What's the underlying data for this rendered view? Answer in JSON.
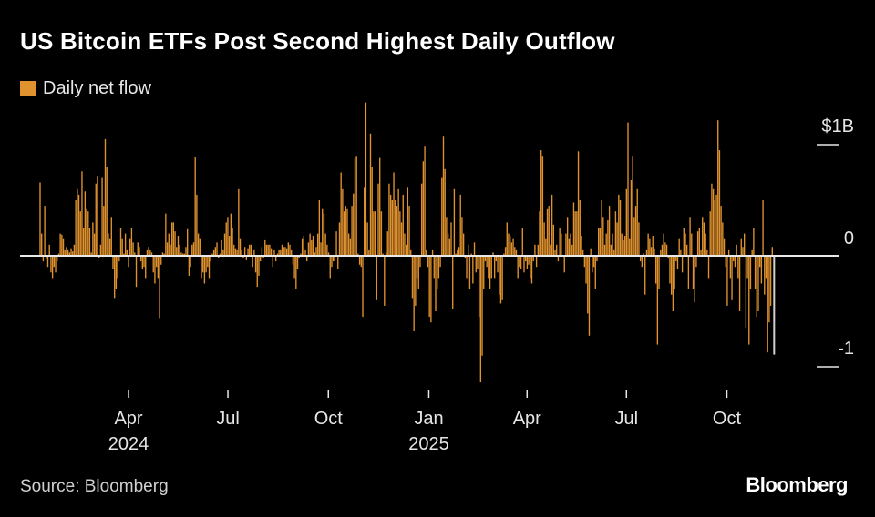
{
  "chart_data": {
    "type": "bar",
    "title": "US Bitcoin ETFs Post Second Highest Daily Outflow",
    "legend": [
      {
        "name": "Daily net flow",
        "color": "#e0922e"
      }
    ],
    "unit": "$B",
    "xlim": [
      "2024-01-11",
      "2025-11-13"
    ],
    "ylim": [
      -1.2,
      1.4
    ],
    "y_ticks": [
      {
        "value": 1,
        "label": "$1B"
      },
      {
        "value": 0,
        "label": "0"
      },
      {
        "value": -1,
        "label": "-1"
      }
    ],
    "x_ticks": [
      {
        "date": "2024-04-01",
        "label": "Apr",
        "year": "2024"
      },
      {
        "date": "2024-07-01",
        "label": "Jul",
        "year": ""
      },
      {
        "date": "2024-10-01",
        "label": "Oct",
        "year": ""
      },
      {
        "date": "2025-01-01",
        "label": "Jan",
        "year": "2025"
      },
      {
        "date": "2025-04-01",
        "label": "Apr",
        "year": ""
      },
      {
        "date": "2025-07-01",
        "label": "Jul",
        "year": ""
      },
      {
        "date": "2025-10-01",
        "label": "Oct",
        "year": ""
      }
    ],
    "bar_color": "#e0922e",
    "highlight_color": "#cfcfcf",
    "highlight_last": true,
    "grid": false,
    "legend_placement": "top-left",
    "values": [
      0.66,
      0.2,
      -0.05,
      0.45,
      -0.03,
      -0.1,
      0.1,
      -0.15,
      -0.2,
      -0.1,
      -0.15,
      -0.05,
      0.02,
      0.2,
      0.19,
      0.15,
      0.05,
      0.08,
      0.05,
      0.03,
      0.06,
      0.04,
      0.1,
      0.5,
      0.6,
      0.55,
      0.4,
      0.76,
      0.25,
      0.58,
      0.42,
      0.4,
      0.25,
      0.03,
      0.3,
      0.2,
      0.65,
      0.72,
      -0.02,
      0.1,
      0.7,
      0.45,
      1.05,
      0.8,
      0.2,
      0.15,
      0.35,
      -0.12,
      -0.38,
      -0.3,
      -0.2,
      -0.05,
      0.25,
      0.15,
      0.02,
      0.2,
      0.05,
      -0.1,
      0.15,
      0.25,
      0.12,
      0.03,
      -0.28,
      0.12,
      0.08,
      -0.05,
      -0.12,
      -0.1,
      -0.2,
      0.05,
      0.08,
      0.05,
      0.03,
      -0.15,
      -0.25,
      -0.1,
      -0.2,
      -0.56,
      -0.08,
      0.03,
      0.02,
      0.38,
      0.12,
      0.2,
      0.1,
      0.3,
      0.3,
      0.22,
      0.08,
      0.18,
      0.1,
      0.03,
      0.02,
      0.02,
      0.08,
      0.24,
      -0.18,
      -0.1,
      0.1,
      0.12,
      0.89,
      0.55,
      0.2,
      0.15,
      -0.2,
      -0.15,
      -0.25,
      -0.15,
      -0.1,
      -0.2,
      -0.05,
      0.02,
      0.05,
      0.08,
      0.12,
      -0.02,
      0.02,
      0.14,
      0.05,
      0.2,
      0.3,
      0.35,
      0.18,
      0.38,
      0.25,
      0.1,
      0.06,
      0.05,
      0.6,
      0.15,
      0.05,
      -0.02,
      0.08,
      -0.04,
      0.06,
      0.1,
      0.1,
      -0.1,
      0.05,
      -0.15,
      -0.28,
      -0.18,
      -0.05,
      0.08,
      -0.02,
      0.14,
      0.1,
      0.1,
      0.1,
      0.06,
      -0.1,
      0.05,
      -0.05,
      0.02,
      0.05,
      0.05,
      0.1,
      0.08,
      0.08,
      0.06,
      0.12,
      0.1,
      0.05,
      -0.08,
      -0.2,
      -0.3,
      -0.12,
      -0.02,
      0.02,
      0.15,
      0.18,
      0.05,
      -0.05,
      0.12,
      0.2,
      0.14,
      0.18,
      0.03,
      0.08,
      0.2,
      0.5,
      0.12,
      0.42,
      0.38,
      0.2,
      0.1,
      0.03,
      -0.2,
      -0.1,
      -0.05,
      -0.05,
      0.22,
      -0.12,
      0.3,
      0.75,
      0.6,
      0.4,
      0.45,
      0.42,
      0.2,
      0.15,
      0.45,
      0.56,
      0.88,
      0.9,
      0.02,
      -0.08,
      -0.1,
      -0.55,
      0.62,
      1.38,
      0.3,
      0.05,
      1.1,
      0.8,
      0.4,
      0.4,
      -0.4,
      0.65,
      0.88,
      0.4,
      0.02,
      -0.45,
      0.03,
      0.22,
      0.65,
      0.55,
      0.5,
      0.75,
      0.5,
      0.45,
      0.6,
      0.4,
      0.3,
      0.55,
      0.2,
      0.1,
      0.62,
      0.45,
      0.05,
      -0.38,
      -0.68,
      -0.45,
      -0.2,
      -0.3,
      -0.1,
      0.65,
      0.85,
      0.99,
      0.05,
      -0.1,
      -0.55,
      -0.6,
      0.05,
      -0.2,
      -0.5,
      -0.3,
      -0.2,
      -0.1,
      0.7,
      1.08,
      0.78,
      0.35,
      0.2,
      0.15,
      0.3,
      -0.48,
      0.6,
      0.02,
      0.05,
      0.08,
      0.55,
      0.35,
      0.2,
      -0.02,
      -0.2,
      0.1,
      -0.3,
      0.02,
      -0.25,
      0.12,
      -0.15,
      -0.12,
      -0.55,
      -1.14,
      -0.9,
      -0.3,
      -0.05,
      -0.1,
      -0.2,
      -0.3,
      -0.2,
      0.03,
      -0.2,
      -0.05,
      -0.15,
      -0.35,
      -0.43,
      -0.4,
      0.02,
      0.08,
      0.3,
      0.2,
      0.18,
      0.12,
      0.15,
      0.08,
      0.05,
      -0.2,
      -0.1,
      -0.12,
      0.25,
      -0.15,
      -0.05,
      -0.12,
      -0.08,
      -0.2,
      -0.25,
      -0.05,
      0.1,
      -0.1,
      0.1,
      0.4,
      0.95,
      0.9,
      0.3,
      0.15,
      0.42,
      0.45,
      0.1,
      0.55,
      0.28,
      0.05,
      0.1,
      -0.05,
      0.25,
      0.2,
      0.0,
      -0.15,
      0.2,
      0.35,
      0.15,
      0.2,
      0.1,
      0.48,
      0.4,
      0.4,
      0.94,
      0.5,
      0.18,
      0.05,
      -0.1,
      -0.25,
      -0.52,
      -0.72,
      0.06,
      -0.15,
      -0.1,
      -0.3,
      -0.05,
      0.25,
      0.25,
      0.5,
      0.35,
      0.1,
      0.2,
      0.32,
      0.45,
      0.1,
      0.2,
      0.05,
      0.4,
      0.3,
      0.55,
      0.5,
      0.2,
      0.14,
      0.18,
      0.6,
      1.2,
      0.15,
      0.68,
      0.9,
      0.35,
      0.45,
      0.6,
      0.3,
      -0.05,
      -0.1,
      0.02,
      -0.35,
      0.05,
      0.2,
      0.15,
      0.08,
      0.18,
      0.06,
      -0.25,
      -0.8,
      -0.3,
      0.05,
      0.1,
      0.2,
      0.12,
      0.1,
      -0.02,
      -0.25,
      -0.35,
      -0.5,
      -0.3,
      -0.05,
      -0.12,
      0.15,
      0.05,
      -0.15,
      0.25,
      0.2,
      0.1,
      -0.3,
      0.35,
      0.2,
      -0.3,
      -0.42,
      -0.1,
      0.22,
      0.25,
      0.05,
      0.35,
      0.3,
      0.2,
      0.05,
      -0.2,
      0.4,
      0.65,
      0.6,
      0.5,
      0.55,
      1.22,
      0.95,
      0.45,
      0.3,
      0.15,
      -0.1,
      -0.45,
      0.05,
      -0.2,
      -0.4,
      -0.05,
      -0.1,
      0.1,
      -0.2,
      -0.5,
      0.15,
      0.08,
      0.2,
      -0.65,
      -0.2,
      -0.8,
      -0.3,
      0.05,
      0.25,
      -0.3,
      -0.55,
      -0.5,
      -0.1,
      -0.25,
      0.5,
      -0.35,
      -0.2,
      -0.87,
      -0.6,
      -0.45,
      0.08,
      -0.89
    ]
  },
  "footer": {
    "source": "Source: Bloomberg",
    "logo": "Bloomberg"
  }
}
